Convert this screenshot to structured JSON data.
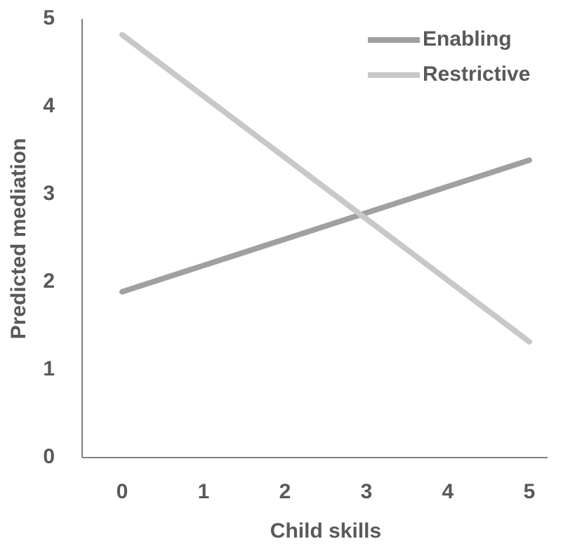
{
  "chart_data": {
    "type": "line",
    "x_label": "Child skills",
    "y_label": "Predicted mediation",
    "categories": [
      "0",
      "1",
      "2",
      "3",
      "4",
      "5"
    ],
    "series": [
      {
        "name": "Enabling",
        "color": "#a0a0a0",
        "values": [
          1.89,
          2.19,
          2.49,
          2.79,
          3.09,
          3.39
        ]
      },
      {
        "name": "Restrictive",
        "color": "#c8c8c8",
        "values": [
          4.82,
          4.12,
          3.42,
          2.72,
          2.02,
          1.32
        ]
      }
    ],
    "ylim": [
      0,
      5
    ],
    "yticks": [
      0,
      1,
      2,
      3,
      4,
      5
    ],
    "grid": false,
    "legend": "top-right"
  }
}
